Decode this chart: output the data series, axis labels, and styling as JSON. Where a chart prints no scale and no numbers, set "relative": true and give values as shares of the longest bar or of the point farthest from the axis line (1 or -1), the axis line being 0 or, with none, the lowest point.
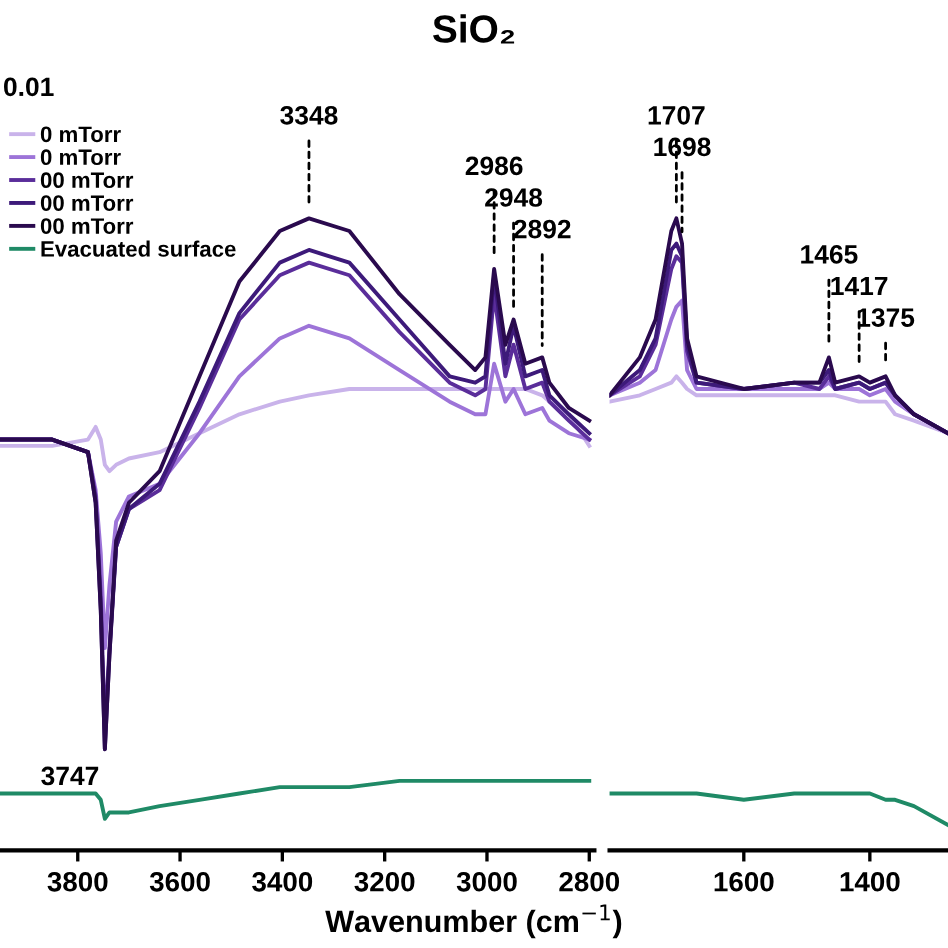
{
  "chart_data": [
    {
      "type": "line",
      "title": "SiO₂",
      "xlabel": "Wavenumber (cm$^{−1}$)",
      "relative": true,
      "legend": "top left",
      "xlim": [
        3952,
        2790
      ],
      "xticks": [
        3800,
        3600,
        3400,
        3200,
        3000,
        2800
      ],
      "annotations": [
        "0.01",
        {
          "text": "3348",
          "x": 3348,
          "y": 1.0
        },
        {
          "text": "2986",
          "x": 2986,
          "y": 0.92
        },
        {
          "text": "2948",
          "x": 2948,
          "y": 0.84
        },
        {
          "text": "2892",
          "x": 2892,
          "y": 0.78
        },
        {
          "text": "3747",
          "x": 3747,
          "y": 0.16
        }
      ],
      "series": [
        {
          "name": "0 mTorr",
          "color": "#c9b3ea",
          "x": [
            3950,
            3850,
            3780,
            3765,
            3755,
            3747,
            3738,
            3725,
            3700,
            3640,
            3562,
            3484,
            3405,
            3348,
            3269,
            3171,
            3073,
            3023,
            3003,
            2986,
            2964,
            2948,
            2925,
            2892,
            2878,
            2840,
            2800
          ],
          "values": [
            0.64,
            0.64,
            0.65,
            0.67,
            0.65,
            0.61,
            0.6,
            0.61,
            0.62,
            0.63,
            0.66,
            0.69,
            0.71,
            0.72,
            0.73,
            0.73,
            0.73,
            0.73,
            0.73,
            0.73,
            0.73,
            0.73,
            0.73,
            0.72,
            0.71,
            0.69,
            0.64
          ]
        },
        {
          "name": "0 mTorr",
          "color": "#9d74d8",
          "x": [
            3950,
            3850,
            3780,
            3765,
            3755,
            3747,
            3738,
            3725,
            3700,
            3640,
            3562,
            3484,
            3405,
            3348,
            3269,
            3171,
            3073,
            3023,
            3003,
            2986,
            2964,
            2948,
            2925,
            2892,
            2878,
            2840,
            2800
          ],
          "values": [
            0.65,
            0.65,
            0.63,
            0.57,
            0.47,
            0.32,
            0.42,
            0.52,
            0.56,
            0.58,
            0.66,
            0.75,
            0.81,
            0.83,
            0.81,
            0.76,
            0.71,
            0.69,
            0.69,
            0.77,
            0.71,
            0.73,
            0.69,
            0.7,
            0.68,
            0.66,
            0.65
          ]
        },
        {
          "name": "00 mTorr",
          "color": "#5a2d9a",
          "x": [
            3950,
            3850,
            3780,
            3765,
            3755,
            3747,
            3738,
            3725,
            3700,
            3640,
            3562,
            3484,
            3405,
            3348,
            3269,
            3171,
            3073,
            3023,
            3003,
            2986,
            2964,
            2948,
            2925,
            2892,
            2878,
            2840,
            2800
          ],
          "values": [
            0.65,
            0.65,
            0.63,
            0.56,
            0.4,
            0.19,
            0.32,
            0.48,
            0.54,
            0.57,
            0.7,
            0.84,
            0.91,
            0.93,
            0.91,
            0.82,
            0.74,
            0.72,
            0.73,
            0.88,
            0.75,
            0.8,
            0.73,
            0.74,
            0.71,
            0.68,
            0.65
          ]
        },
        {
          "name": "00 mTorr",
          "color": "#3d1a7a",
          "x": [
            3950,
            3850,
            3780,
            3765,
            3755,
            3747,
            3738,
            3725,
            3700,
            3640,
            3562,
            3484,
            3405,
            3348,
            3269,
            3171,
            3073,
            3023,
            3003,
            2986,
            2964,
            2948,
            2925,
            2892,
            2878,
            2840,
            2800
          ],
          "values": [
            0.65,
            0.65,
            0.63,
            0.55,
            0.38,
            0.16,
            0.31,
            0.48,
            0.54,
            0.58,
            0.71,
            0.85,
            0.93,
            0.95,
            0.93,
            0.84,
            0.75,
            0.74,
            0.75,
            0.91,
            0.77,
            0.83,
            0.75,
            0.76,
            0.72,
            0.69,
            0.66
          ]
        },
        {
          "name": "00 mTorr",
          "color": "#2a0a4e",
          "x": [
            3950,
            3850,
            3780,
            3765,
            3755,
            3747,
            3738,
            3725,
            3700,
            3640,
            3562,
            3484,
            3405,
            3348,
            3269,
            3171,
            3073,
            3023,
            3003,
            2986,
            2964,
            2948,
            2925,
            2892,
            2878,
            2840,
            2800
          ],
          "values": [
            0.65,
            0.65,
            0.63,
            0.55,
            0.38,
            0.16,
            0.31,
            0.49,
            0.55,
            0.6,
            0.75,
            0.9,
            0.98,
            1.0,
            0.98,
            0.88,
            0.8,
            0.76,
            0.78,
            0.92,
            0.8,
            0.84,
            0.77,
            0.78,
            0.74,
            0.7,
            0.68
          ]
        },
        {
          "name": "Evacuated surface",
          "color": "#1f8a66",
          "x": [
            3950,
            3850,
            3780,
            3765,
            3755,
            3747,
            3738,
            3725,
            3700,
            3640,
            3562,
            3484,
            3405,
            3348,
            3269,
            3171,
            3073,
            3023,
            3003,
            2986,
            2964,
            2948,
            2925,
            2892,
            2878,
            2840,
            2800
          ],
          "values": [
            0.09,
            0.09,
            0.09,
            0.09,
            0.08,
            0.05,
            0.06,
            0.06,
            0.06,
            0.07,
            0.08,
            0.09,
            0.1,
            0.1,
            0.1,
            0.11,
            0.11,
            0.11,
            0.11,
            0.11,
            0.11,
            0.11,
            0.11,
            0.11,
            0.11,
            0.11,
            0.11
          ]
        }
      ]
    },
    {
      "type": "line",
      "relative": true,
      "xlim": [
        1813,
        1276
      ],
      "xticks": [
        1600,
        1400
      ],
      "annotations": [
        {
          "text": "1707",
          "x": 1707,
          "y": 1.0
        },
        {
          "text": "1698",
          "x": 1698,
          "y": 0.96
        },
        {
          "text": "1465",
          "x": 1465,
          "y": 0.78
        },
        {
          "text": "1417",
          "x": 1417,
          "y": 0.75
        },
        {
          "text": "1375",
          "x": 1375,
          "y": 0.75
        }
      ],
      "series": [
        {
          "color": "#c9b3ea",
          "x": [
            1813,
            1765,
            1740,
            1715,
            1707,
            1698,
            1690,
            1675,
            1600,
            1520,
            1480,
            1465,
            1455,
            1417,
            1400,
            1375,
            1360,
            1330,
            1276
          ],
          "values": [
            0.71,
            0.72,
            0.73,
            0.74,
            0.75,
            0.74,
            0.73,
            0.72,
            0.72,
            0.72,
            0.72,
            0.72,
            0.72,
            0.71,
            0.71,
            0.71,
            0.69,
            0.68,
            0.66
          ]
        },
        {
          "color": "#9d74d8",
          "x": [
            1813,
            1765,
            1740,
            1715,
            1707,
            1698,
            1690,
            1675,
            1600,
            1520,
            1480,
            1465,
            1455,
            1417,
            1400,
            1375,
            1360,
            1330,
            1276
          ],
          "values": [
            0.72,
            0.74,
            0.76,
            0.84,
            0.86,
            0.87,
            0.76,
            0.73,
            0.73,
            0.73,
            0.73,
            0.74,
            0.73,
            0.73,
            0.72,
            0.73,
            0.71,
            0.69,
            0.66
          ]
        },
        {
          "color": "#5a2d9a",
          "x": [
            1813,
            1765,
            1740,
            1715,
            1707,
            1698,
            1690,
            1675,
            1600,
            1520,
            1480,
            1465,
            1455,
            1417,
            1400,
            1375,
            1360,
            1330,
            1276
          ],
          "values": [
            0.72,
            0.75,
            0.8,
            0.92,
            0.94,
            0.93,
            0.79,
            0.74,
            0.73,
            0.74,
            0.73,
            0.75,
            0.73,
            0.74,
            0.73,
            0.74,
            0.72,
            0.69,
            0.66
          ]
        },
        {
          "color": "#3d1a7a",
          "x": [
            1813,
            1765,
            1740,
            1715,
            1707,
            1698,
            1690,
            1675,
            1600,
            1520,
            1480,
            1465,
            1455,
            1417,
            1400,
            1375,
            1360,
            1330,
            1276
          ],
          "values": [
            0.72,
            0.76,
            0.81,
            0.95,
            0.96,
            0.94,
            0.8,
            0.74,
            0.73,
            0.74,
            0.74,
            0.76,
            0.73,
            0.74,
            0.73,
            0.74,
            0.72,
            0.69,
            0.66
          ]
        },
        {
          "color": "#2a0a4e",
          "x": [
            1813,
            1765,
            1740,
            1715,
            1707,
            1698,
            1690,
            1675,
            1600,
            1520,
            1480,
            1465,
            1455,
            1417,
            1400,
            1375,
            1360,
            1330,
            1276
          ],
          "values": [
            0.72,
            0.78,
            0.84,
            0.98,
            1.0,
            0.96,
            0.81,
            0.75,
            0.73,
            0.74,
            0.74,
            0.78,
            0.74,
            0.75,
            0.74,
            0.75,
            0.72,
            0.69,
            0.66
          ]
        },
        {
          "color": "#1f8a66",
          "x": [
            1813,
            1765,
            1740,
            1715,
            1707,
            1698,
            1690,
            1675,
            1600,
            1520,
            1480,
            1465,
            1455,
            1417,
            1400,
            1375,
            1360,
            1330,
            1276
          ],
          "values": [
            0.09,
            0.09,
            0.09,
            0.09,
            0.09,
            0.09,
            0.09,
            0.09,
            0.08,
            0.09,
            0.09,
            0.09,
            0.09,
            0.09,
            0.09,
            0.08,
            0.08,
            0.07,
            0.04
          ]
        }
      ]
    }
  ]
}
